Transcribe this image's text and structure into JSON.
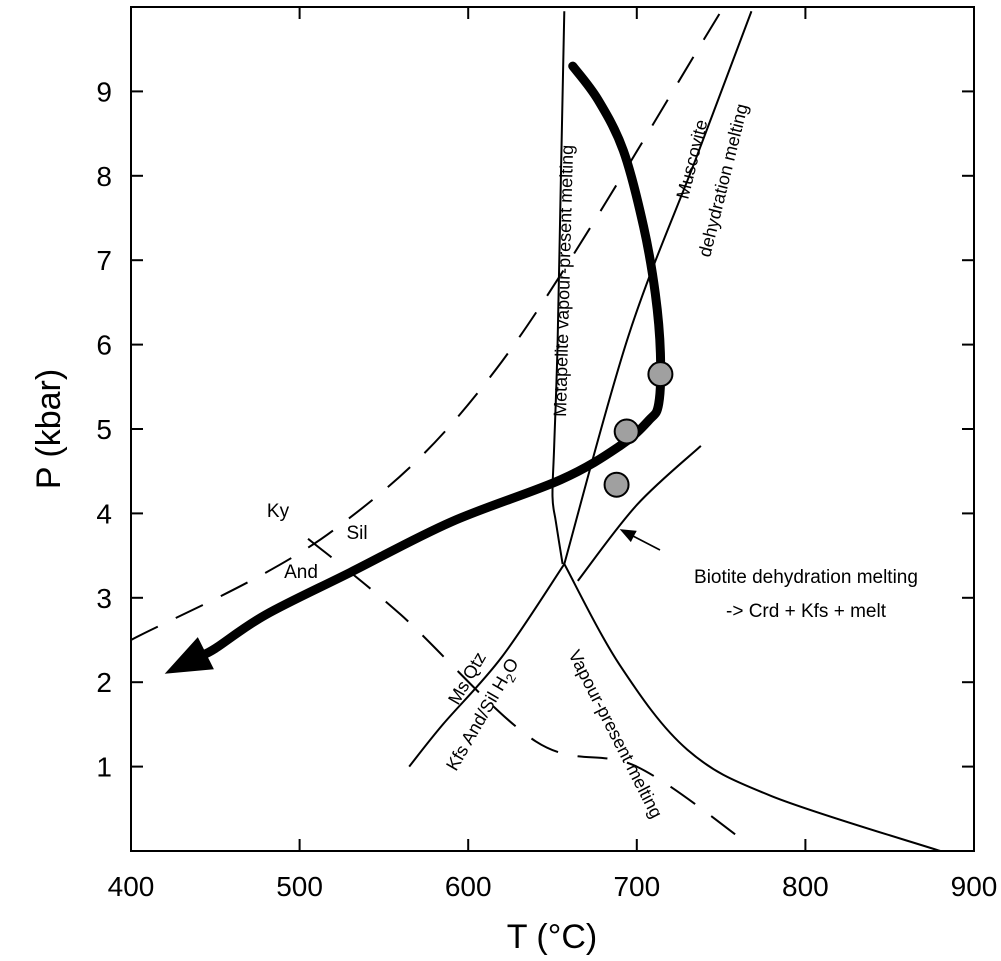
{
  "chart_data": {
    "type": "line",
    "xlabel": "T (°C)",
    "ylabel": "P (kbar)",
    "xlim": [
      400,
      900
    ],
    "ylim": [
      0,
      10
    ],
    "xticks": [
      "400",
      "500",
      "600",
      "700",
      "800",
      "900"
    ],
    "yticks": [
      "1",
      "2",
      "3",
      "4",
      "5",
      "6",
      "7",
      "8",
      "9"
    ],
    "grid": false,
    "ticks_on_all_sides": true,
    "colors": {
      "line": "#000000",
      "marker_fill": "#a0a0a0",
      "background": "#ffffff"
    },
    "series": [
      {
        "name": "Metapelite vapour-present melting",
        "style": "solid",
        "x": [
          657,
          655,
          653,
          651,
          650,
          652,
          656
        ],
        "y": [
          9.95,
          8.0,
          6.0,
          4.8,
          4.2,
          3.9,
          3.4
        ]
      },
      {
        "name": "Muscovite dehydration melting",
        "style": "solid",
        "x": [
          657,
          695,
          735,
          768
        ],
        "y": [
          3.4,
          6.1,
          8.2,
          9.95
        ]
      },
      {
        "name": "Vapour-present melting",
        "style": "solid",
        "x": [
          657,
          690,
          730,
          780,
          880
        ],
        "y": [
          3.4,
          2.2,
          1.2,
          0.65,
          0.0
        ]
      },
      {
        "name": "Ms Qtz Kfs And/Sil H2O",
        "style": "solid",
        "x": [
          657,
          620,
          585,
          565
        ],
        "y": [
          3.4,
          2.3,
          1.5,
          1.0
        ]
      },
      {
        "name": "Biotite dehydration melting",
        "style": "solid",
        "x": [
          665,
          700,
          738
        ],
        "y": [
          3.2,
          4.1,
          4.8
        ]
      },
      {
        "name": "Ky/Sil boundary",
        "style": "dashed",
        "x": [
          400,
          520,
          620,
          750
        ],
        "y": [
          2.5,
          3.8,
          5.8,
          9.95
        ]
      },
      {
        "name": "And/Sil boundary",
        "style": "dashed",
        "x": [
          505,
          560,
          640,
          700,
          765
        ],
        "y": [
          3.7,
          2.8,
          1.3,
          1.0,
          0.1
        ]
      },
      {
        "name": "P-T path",
        "style": "thick-arrow",
        "x": [
          662,
          677,
          692,
          704,
          711,
          714,
          713,
          707,
          690,
          655,
          590,
          530,
          480,
          450,
          420
        ],
        "y": [
          9.3,
          8.9,
          8.3,
          7.4,
          6.6,
          5.9,
          5.3,
          5.1,
          4.8,
          4.4,
          3.9,
          3.3,
          2.8,
          2.4,
          2.1
        ]
      }
    ],
    "points": [
      {
        "x": 714,
        "y": 5.65
      },
      {
        "x": 694,
        "y": 4.97
      },
      {
        "x": 688,
        "y": 4.34
      }
    ],
    "annotations": {
      "metapelite": "Metapelite vapour-present melting",
      "muscovite_line1": "Muscovite",
      "muscovite_line2": "dehydration melting",
      "vapour": "Vapour-present melting",
      "msqtz_line1": "Ms Qtz",
      "msqtz_line2_pre": "Kfs And/Sil H",
      "msqtz_line2_sub": "2",
      "msqtz_line2_post": "O",
      "biotite_line1": "Biotite dehydration melting",
      "biotite_line2": "-> Crd + Kfs + melt",
      "ky": "Ky",
      "sil": "Sil",
      "and": "And"
    }
  }
}
